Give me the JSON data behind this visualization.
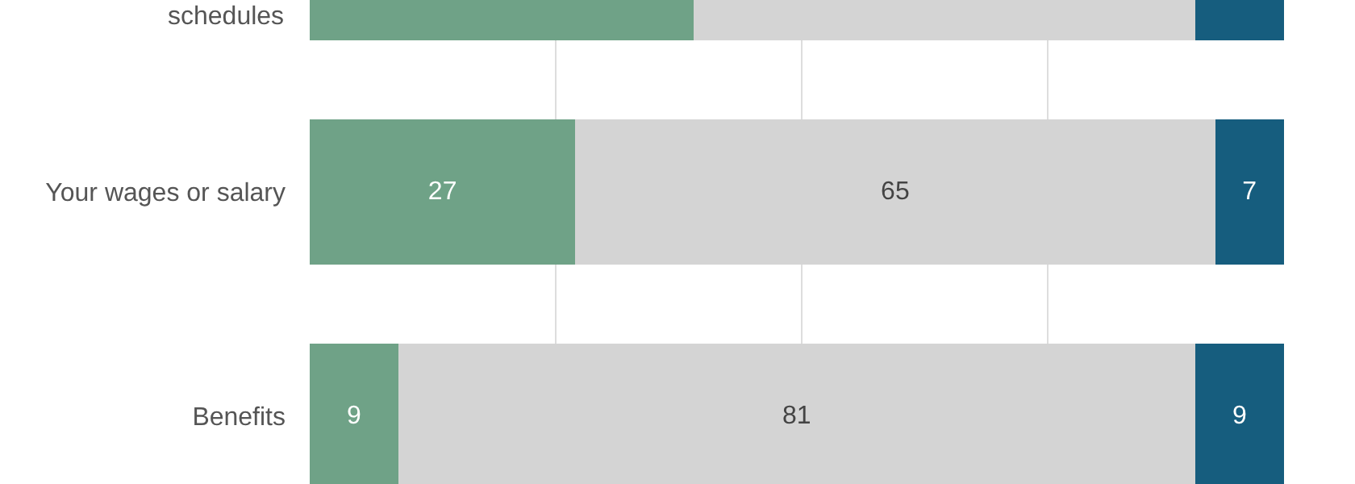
{
  "chart_data": {
    "type": "bar",
    "orientation": "horizontal",
    "stacked": true,
    "categories": [
      "schedules",
      "Your wages or salary",
      "Benefits"
    ],
    "series": [
      {
        "color": "#6fa287",
        "values": [
          39,
          27,
          9
        ],
        "value_labels": [
          null,
          "27",
          "9"
        ]
      },
      {
        "color": "#d4d4d4",
        "values": [
          51,
          65,
          81
        ],
        "value_labels": [
          null,
          "65",
          "81"
        ]
      },
      {
        "color": "#165d7e",
        "values": [
          9,
          7,
          9
        ],
        "value_labels": [
          null,
          "7",
          "9"
        ]
      }
    ],
    "tick_labels": "y",
    "grid": "x"
  }
}
